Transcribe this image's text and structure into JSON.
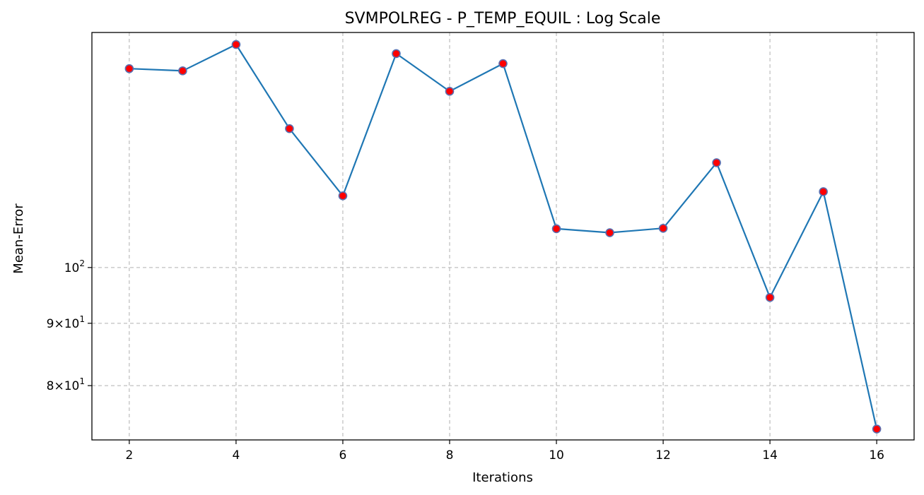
{
  "chart_data": {
    "type": "line",
    "title": "SVMPOLREG - P_TEMP_EQUIL : Log Scale",
    "xlabel": "Iterations",
    "ylabel": "Mean-Error",
    "yscale": "log",
    "grid": true,
    "x": [
      2,
      3,
      4,
      5,
      6,
      7,
      8,
      9,
      10,
      11,
      12,
      13,
      14,
      15,
      16
    ],
    "series": [
      {
        "values": [
          145.6,
          145.0,
          152.4,
          130.0,
          114.5,
          149.8,
          139.5,
          147.0,
          107.6,
          106.8,
          107.7,
          121.9,
          94.5,
          115.4,
          73.7
        ],
        "line_color": "#1f77b4",
        "marker_face_color": "#ff0000",
        "marker_edge_color": "#5a6fb0"
      }
    ],
    "xlim": [
      1.3,
      16.7
    ],
    "ylim": [
      72.2,
      155.9
    ],
    "xticks": [
      2,
      4,
      6,
      8,
      10,
      12,
      14,
      16
    ],
    "yticks": [
      {
        "value": 100,
        "mantissa": "",
        "base": "10",
        "exponent": "2"
      },
      {
        "value": 90,
        "mantissa": "9",
        "base": "10",
        "exponent": "1"
      },
      {
        "value": 80,
        "mantissa": "8",
        "base": "10",
        "exponent": "1"
      }
    ]
  }
}
